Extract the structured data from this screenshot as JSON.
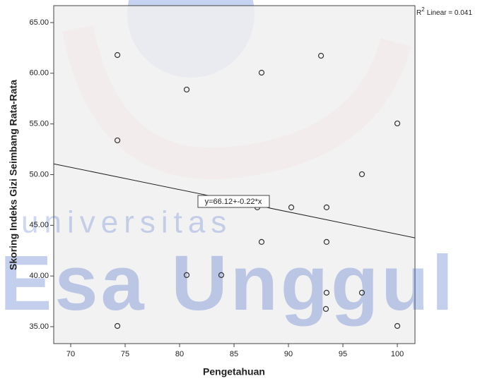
{
  "chart_data": {
    "type": "scatter",
    "xlabel": "Pengetahuan",
    "ylabel": "Skoring Indeks Gizi Seimbang Rata-Rata",
    "x": [
      74.29,
      80.65,
      87.53,
      92.99,
      74.29,
      100,
      96.75,
      87.14,
      90.26,
      93.5,
      87.53,
      93.5,
      80.65,
      83.83,
      93.5,
      96.75,
      93.44,
      74.29,
      100
    ],
    "values": [
      61.8,
      58.39,
      60.06,
      61.73,
      53.38,
      55.05,
      50.04,
      46.77,
      46.77,
      46.77,
      43.36,
      43.36,
      40.09,
      40.09,
      38.35,
      38.35,
      36.75,
      35.07,
      35.07
    ],
    "color": "#333333",
    "xlim": [
      68.44,
      101.62
    ],
    "ylim": [
      33.33,
      66.67
    ],
    "xticks": [
      70,
      75,
      80,
      85,
      90,
      95,
      100
    ],
    "yticks": [
      {
        "value": 35,
        "label": "35.00"
      },
      {
        "value": 40,
        "label": "40.00"
      },
      {
        "value": 45,
        "label": "45.00"
      },
      {
        "value": 50,
        "label": "50.00"
      },
      {
        "value": 55,
        "label": "55.00"
      },
      {
        "value": 60,
        "label": "60.00"
      },
      {
        "value": 65,
        "label": "65.00"
      }
    ],
    "fit_line": {
      "intercept": 66.12,
      "slope": -0.22,
      "label": "y=66.12+-0.22*x"
    },
    "r2": {
      "prefix": "R",
      "sup": "2",
      "text": "Linear = 0.041"
    },
    "watermark": [
      "universitas",
      "Esa Unggul"
    ],
    "grid": false
  }
}
